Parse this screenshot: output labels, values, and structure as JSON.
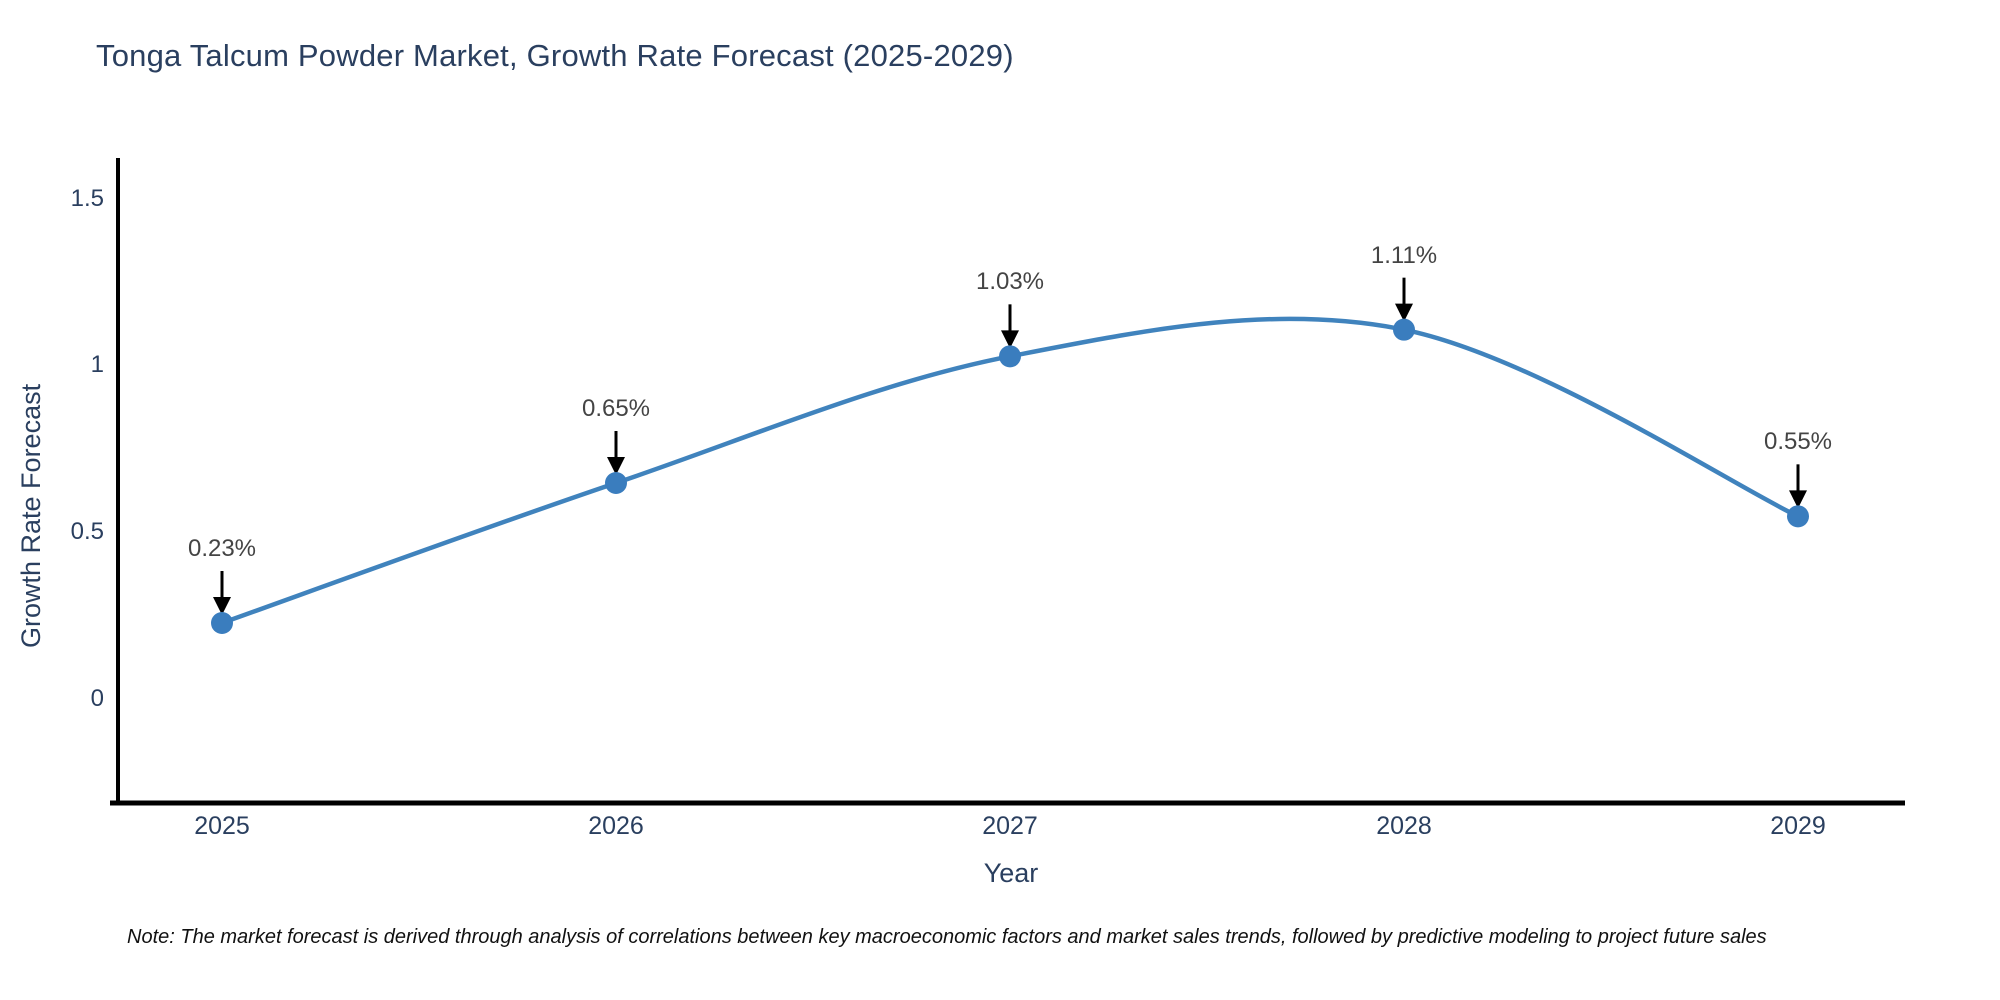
{
  "note": "Note: The market forecast is derived through analysis of correlations between key macroeconomic factors and market sales trends, followed by predictive modeling to project future sales",
  "chart_data": {
    "type": "line",
    "title": "Tonga Talcum Powder Market, Growth Rate Forecast (2025-2029)",
    "xlabel": "Year",
    "ylabel": "Growth Rate Forecast",
    "categories": [
      "2025",
      "2026",
      "2027",
      "2028",
      "2029"
    ],
    "series": [
      {
        "name": "Growth Rate Forecast",
        "values": [
          0.23,
          0.65,
          1.03,
          1.11,
          0.55
        ],
        "point_labels": [
          "0.23%",
          "0.65%",
          "1.03%",
          "1.11%",
          "0.55%"
        ]
      }
    ],
    "ytick_labels": [
      "0",
      "0.5",
      "1",
      "1.5"
    ],
    "ytick_values": [
      0,
      0.5,
      1,
      1.5
    ],
    "ylim": [
      -0.31,
      1.625
    ],
    "line_shape": "spline",
    "grid": false,
    "legend_position": "none",
    "colors": {
      "line": "#4083bd",
      "marker": "#3a7dbe",
      "axis": "#000000",
      "title_text": "#2a3f5f",
      "tick_text": "#2a3f5f",
      "annotation_text": "#444444",
      "annotation_arrow": "#000000",
      "background": "#ffffff"
    }
  }
}
